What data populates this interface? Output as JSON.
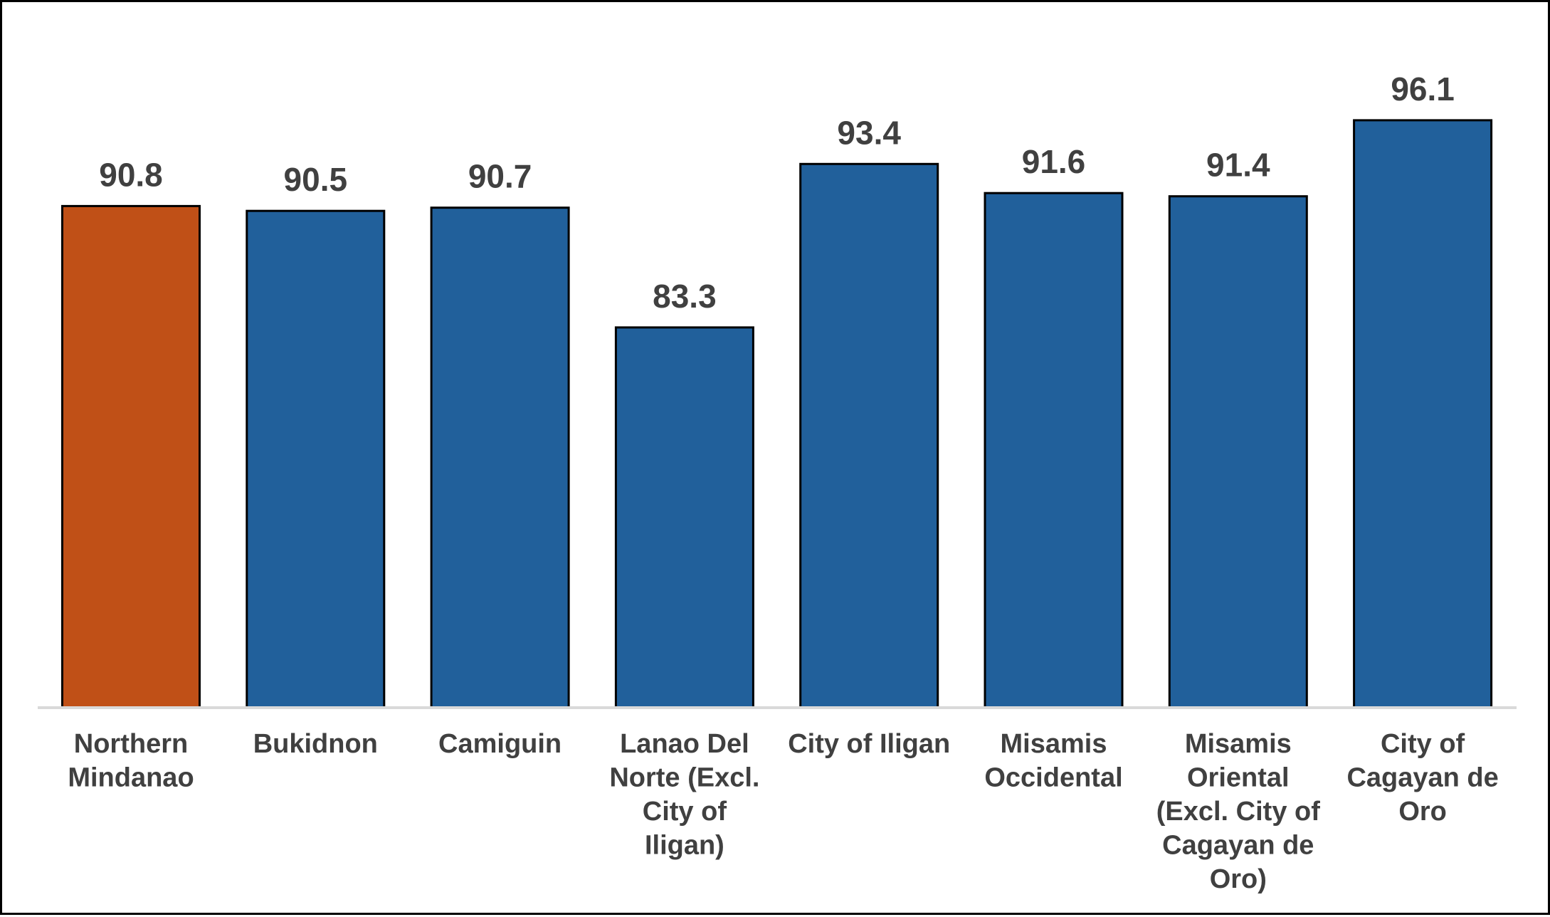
{
  "chart_data": {
    "type": "bar",
    "categories": [
      [
        "Northern",
        "Mindanao"
      ],
      [
        "Bukidnon"
      ],
      [
        "Camiguin"
      ],
      [
        "Lanao Del",
        "Norte (Excl.",
        "City of",
        "Iligan)"
      ],
      [
        "City of Iligan"
      ],
      [
        "Misamis",
        "Occidental"
      ],
      [
        "Misamis",
        "Oriental",
        "(Excl. City of",
        "Cagayan de",
        "Oro)"
      ],
      [
        "City of",
        "Cagayan de",
        "Oro"
      ]
    ],
    "values": [
      90.8,
      90.5,
      90.7,
      83.3,
      93.4,
      91.6,
      91.4,
      96.1
    ],
    "value_labels": [
      "90.8",
      "90.5",
      "90.7",
      "83.3",
      "93.4",
      "91.6",
      "91.4",
      "96.1"
    ],
    "bar_colors": [
      "#C0504D",
      "#2060A0",
      "#2060A0",
      "#2060A0",
      "#2060A0",
      "#2060A0",
      "#2060A0",
      "#2060A0"
    ],
    "highlight_color": "#C05017",
    "series_color": "#21609B",
    "axis_line_color": "#D9D9D9",
    "title": "",
    "xlabel": "",
    "ylabel": "",
    "ylim": [
      59.8,
      99.0
    ],
    "grid": false,
    "legend": "none"
  }
}
